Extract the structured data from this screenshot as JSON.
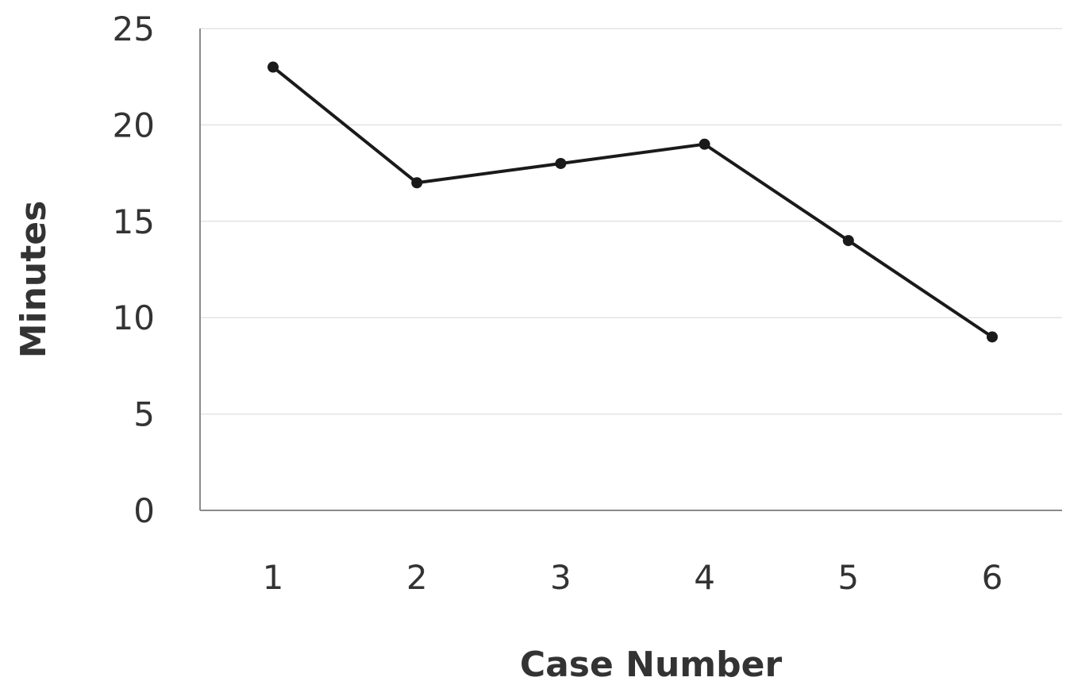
{
  "chart_data": {
    "type": "line",
    "title": "",
    "xlabel": "Case Number",
    "ylabel": "Minutes",
    "categories": [
      "1",
      "2",
      "3",
      "4",
      "5",
      "6"
    ],
    "series": [
      {
        "values": [
          23,
          17,
          18,
          19,
          14,
          9
        ]
      }
    ],
    "ylim": [
      0,
      25
    ],
    "yticks": [
      0,
      5,
      10,
      15,
      20,
      25
    ],
    "grid": true,
    "legend": "none",
    "colors": {
      "line": "#1a1a1a",
      "grid": "#e3e3e3",
      "axis": "#8a8a8a",
      "text": "#333333"
    }
  }
}
